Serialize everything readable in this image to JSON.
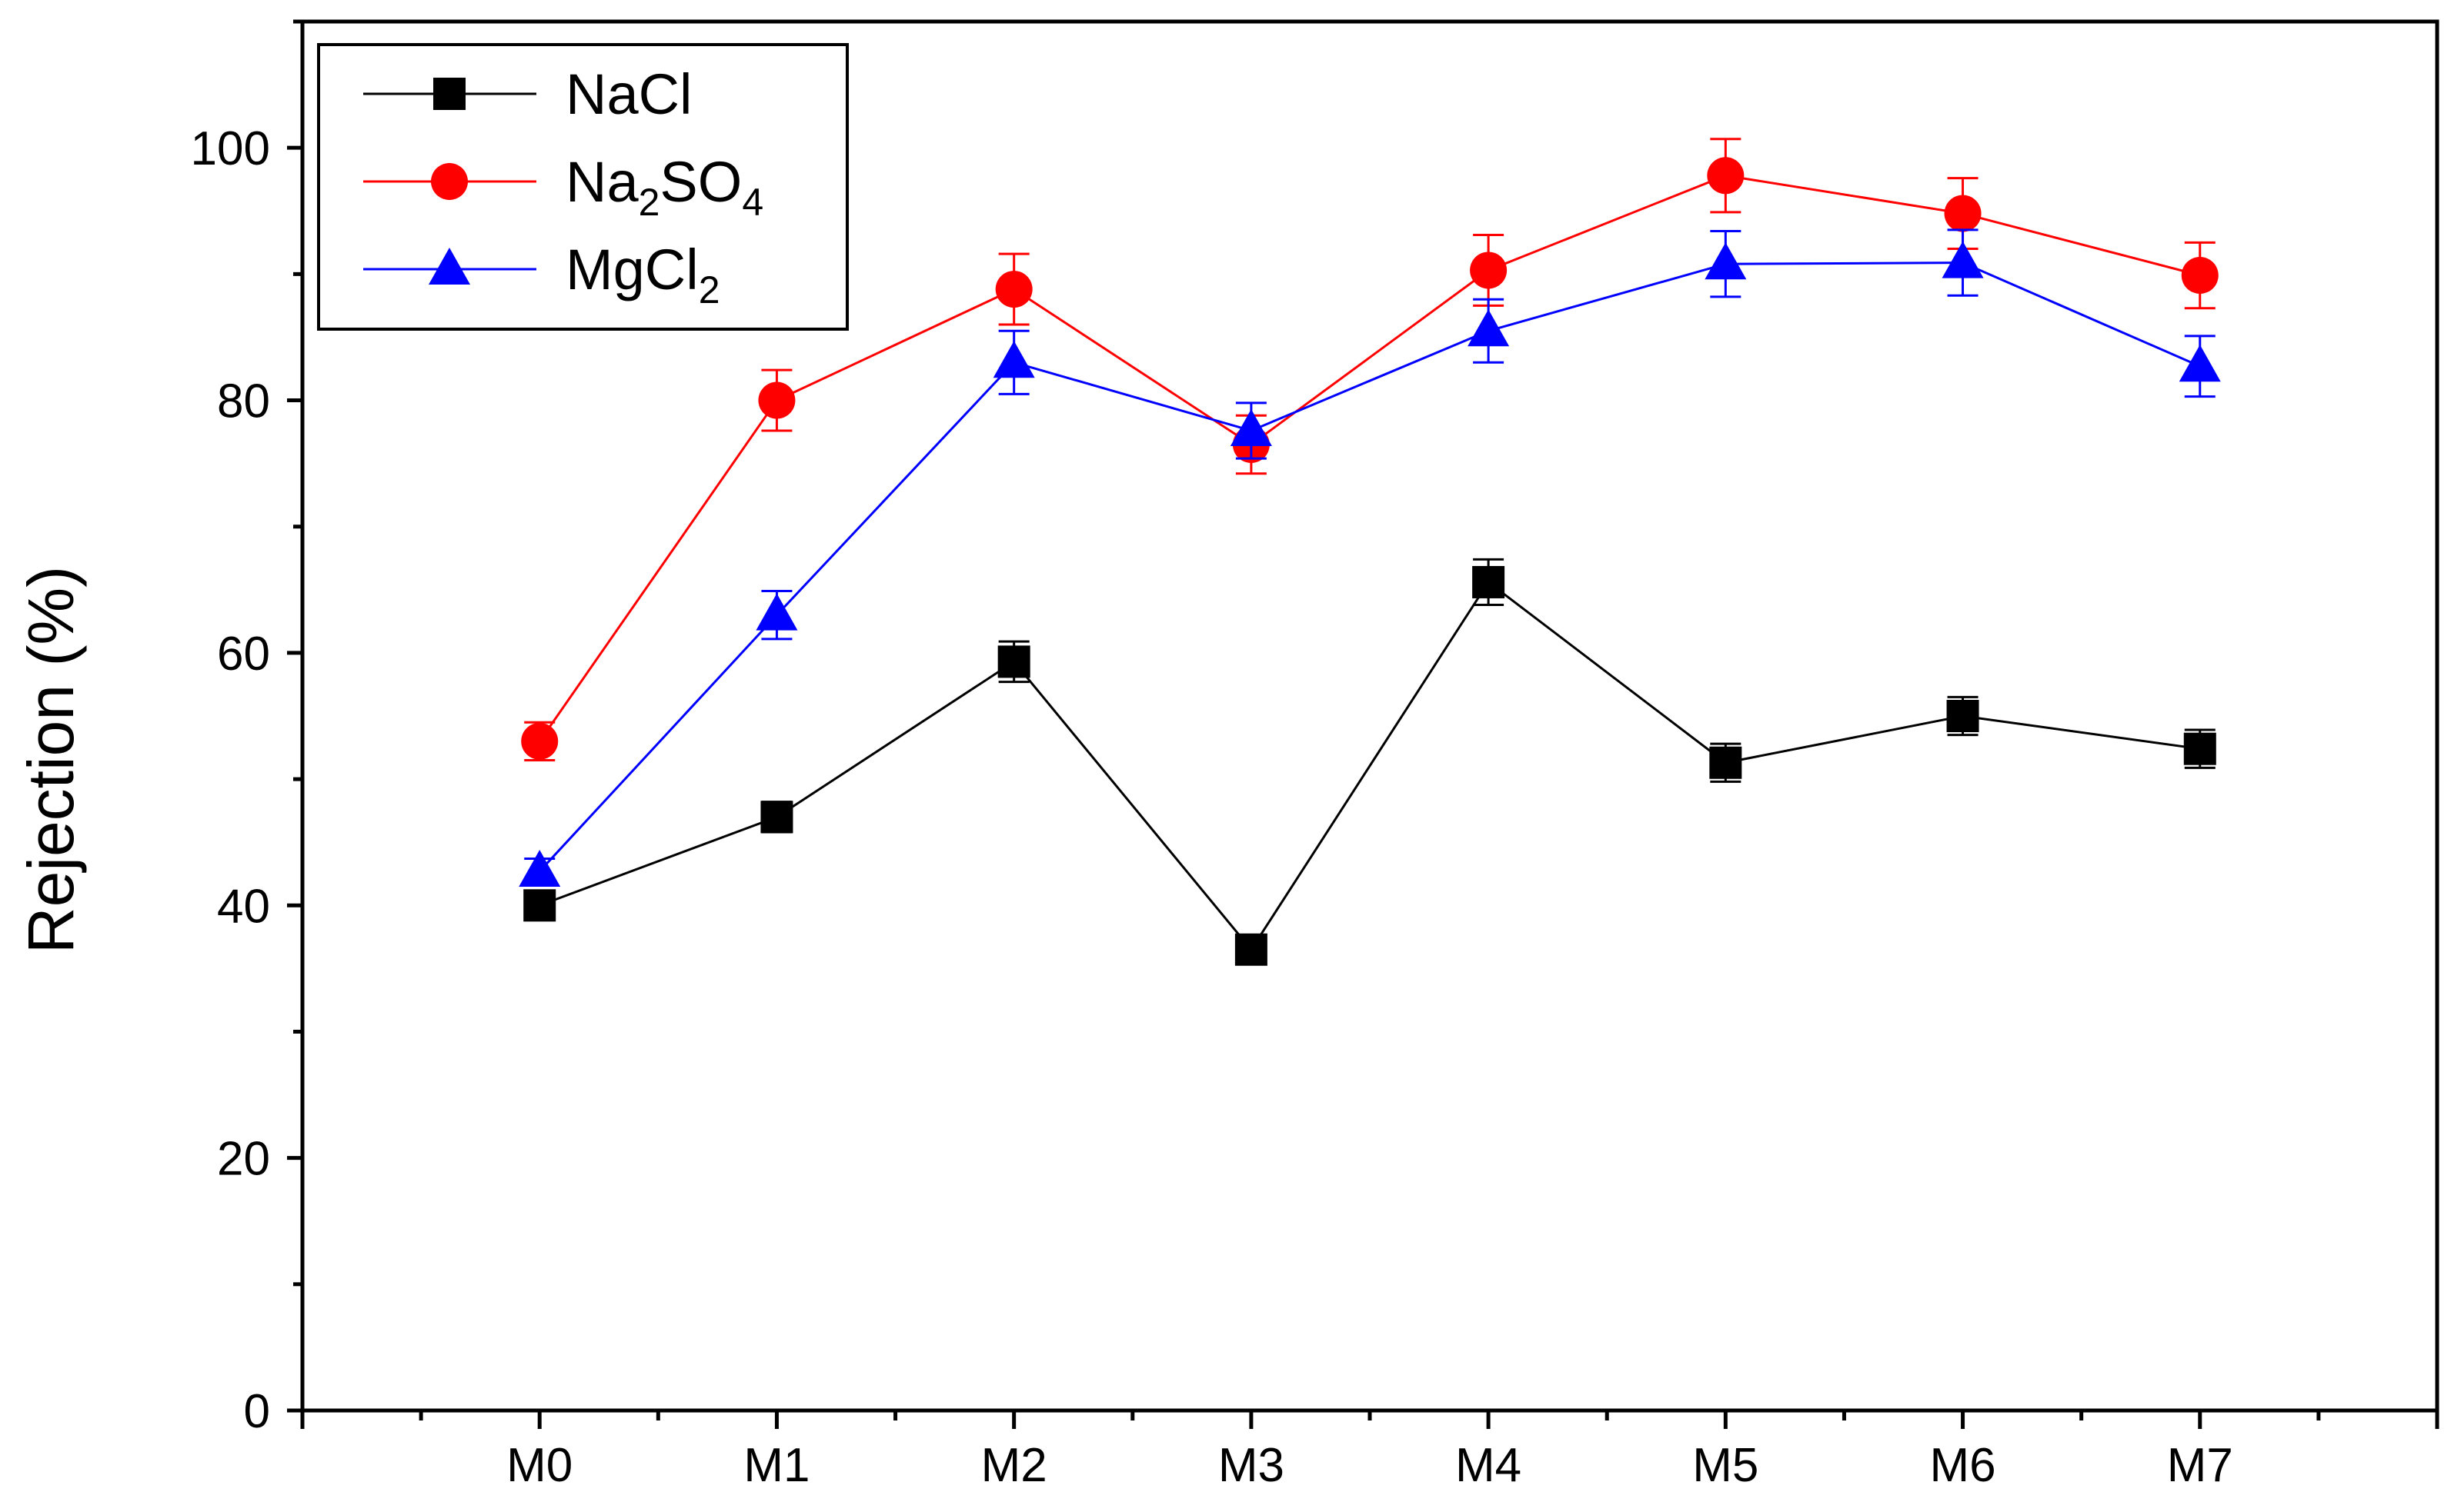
{
  "chart_data": {
    "type": "line",
    "title": "",
    "xlabel": "",
    "ylabel": "Rejection (%)",
    "ylim": [
      0,
      110
    ],
    "yticks": [
      0,
      20,
      40,
      60,
      80,
      100
    ],
    "ytick_labels": [
      "0",
      "20",
      "40",
      "60",
      "80",
      "100"
    ],
    "x_range": [
      -1,
      8
    ],
    "categories": [
      "M0",
      "M1",
      "M2",
      "M3",
      "M4",
      "M5",
      "M6",
      "M7"
    ],
    "grid": false,
    "legend_position": "top-left",
    "series": [
      {
        "name": "NaCl",
        "legend_base": "NaCl",
        "legend_subscripts": [],
        "color": "#000000",
        "marker": "square",
        "values": [
          40.0,
          47.0,
          59.3,
          36.5,
          65.6,
          51.3,
          55.0,
          52.4
        ],
        "errors": [
          0.6,
          1.2,
          1.6,
          0.5,
          1.8,
          1.5,
          1.5,
          1.5
        ]
      },
      {
        "name": "Na2SO4",
        "legend_base": "Na",
        "legend_subscripts": [
          "2",
          "SO",
          "4"
        ],
        "color": "#ff0000",
        "marker": "circle",
        "values": [
          53.0,
          80.0,
          88.8,
          76.5,
          90.3,
          97.8,
          94.8,
          89.9
        ],
        "errors": [
          1.5,
          2.4,
          2.8,
          2.3,
          2.8,
          2.9,
          2.8,
          2.6
        ]
      },
      {
        "name": "MgCl2",
        "legend_base": "MgCl",
        "legend_subscripts": [
          "2"
        ],
        "color": "#0000ff",
        "marker": "triangle",
        "values": [
          42.7,
          63.0,
          83.0,
          77.6,
          85.5,
          90.8,
          90.9,
          82.7
        ],
        "errors": [
          1.0,
          1.9,
          2.5,
          2.2,
          2.5,
          2.6,
          2.6,
          2.4
        ]
      }
    ]
  }
}
